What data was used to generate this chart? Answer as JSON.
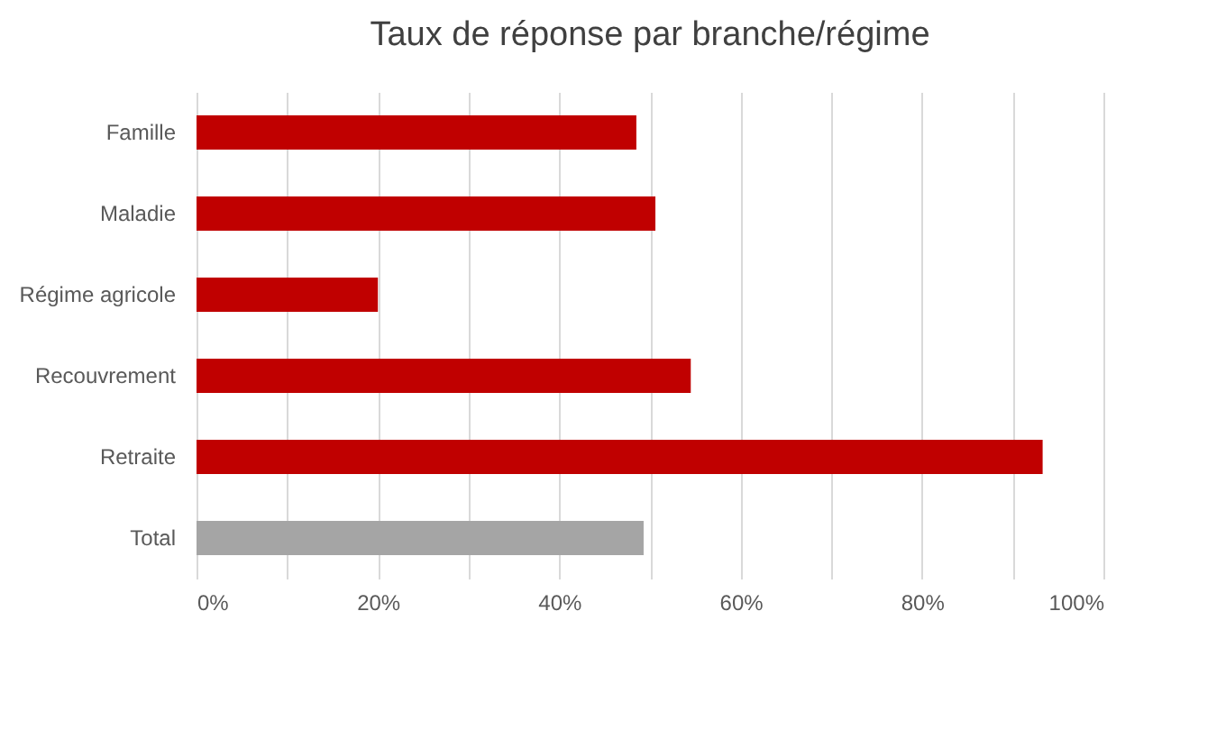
{
  "chart_data": {
    "type": "bar",
    "orientation": "horizontal",
    "title": "Taux de réponse par branche/régime",
    "categories": [
      "Famille",
      "Maladie",
      "Régime agricole",
      "Recouvrement",
      "Retraite",
      "Total"
    ],
    "values": [
      48.5,
      50.6,
      20,
      54.5,
      93.3,
      49.3
    ],
    "colors": [
      "#c00000",
      "#c00000",
      "#c00000",
      "#c00000",
      "#c00000",
      "#a5a5a5"
    ],
    "xlim": [
      0,
      100
    ],
    "xticks": [
      {
        "value": 0,
        "label": "0%"
      },
      {
        "value": 10,
        "label": null
      },
      {
        "value": 20,
        "label": "20%"
      },
      {
        "value": 30,
        "label": null
      },
      {
        "value": 40,
        "label": "40%"
      },
      {
        "value": 50,
        "label": null
      },
      {
        "value": 60,
        "label": "60%"
      },
      {
        "value": 70,
        "label": null
      },
      {
        "value": 80,
        "label": "80%"
      },
      {
        "value": 90,
        "label": null
      },
      {
        "value": 100,
        "label": "100%"
      }
    ],
    "grid": "x"
  }
}
